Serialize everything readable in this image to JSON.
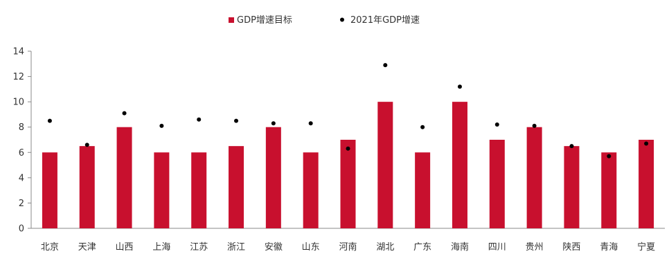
{
  "chart_data": {
    "type": "bar",
    "categories": [
      "北京",
      "天津",
      "山西",
      "上海",
      "江苏",
      "浙江",
      "安徽",
      "山东",
      "河南",
      "湖北",
      "广东",
      "海南",
      "四川",
      "贵州",
      "陕西",
      "青海",
      "宁夏"
    ],
    "series": [
      {
        "name": "GDP增速目标",
        "type": "bar",
        "color": "#c8102e",
        "values": [
          6,
          6.5,
          8,
          6,
          6,
          6.5,
          8,
          6,
          7,
          10,
          6,
          10,
          7,
          8,
          6.5,
          6,
          7
        ]
      },
      {
        "name": "2021年GDP增速",
        "type": "scatter",
        "color": "#000000",
        "values": [
          8.5,
          6.6,
          9.1,
          8.1,
          8.6,
          8.5,
          8.3,
          8.3,
          6.3,
          12.9,
          8.0,
          11.2,
          8.2,
          8.1,
          6.5,
          5.7,
          6.7
        ]
      }
    ],
    "ylim": [
      0,
      14
    ],
    "yticks": [
      0,
      2,
      4,
      6,
      8,
      10,
      12,
      14
    ],
    "grid": false,
    "legend": {
      "position": "top-center",
      "items": [
        {
          "label": "GDP增速目标",
          "marker": "square"
        },
        {
          "label": "2021年GDP增速",
          "marker": "dot"
        }
      ]
    }
  }
}
